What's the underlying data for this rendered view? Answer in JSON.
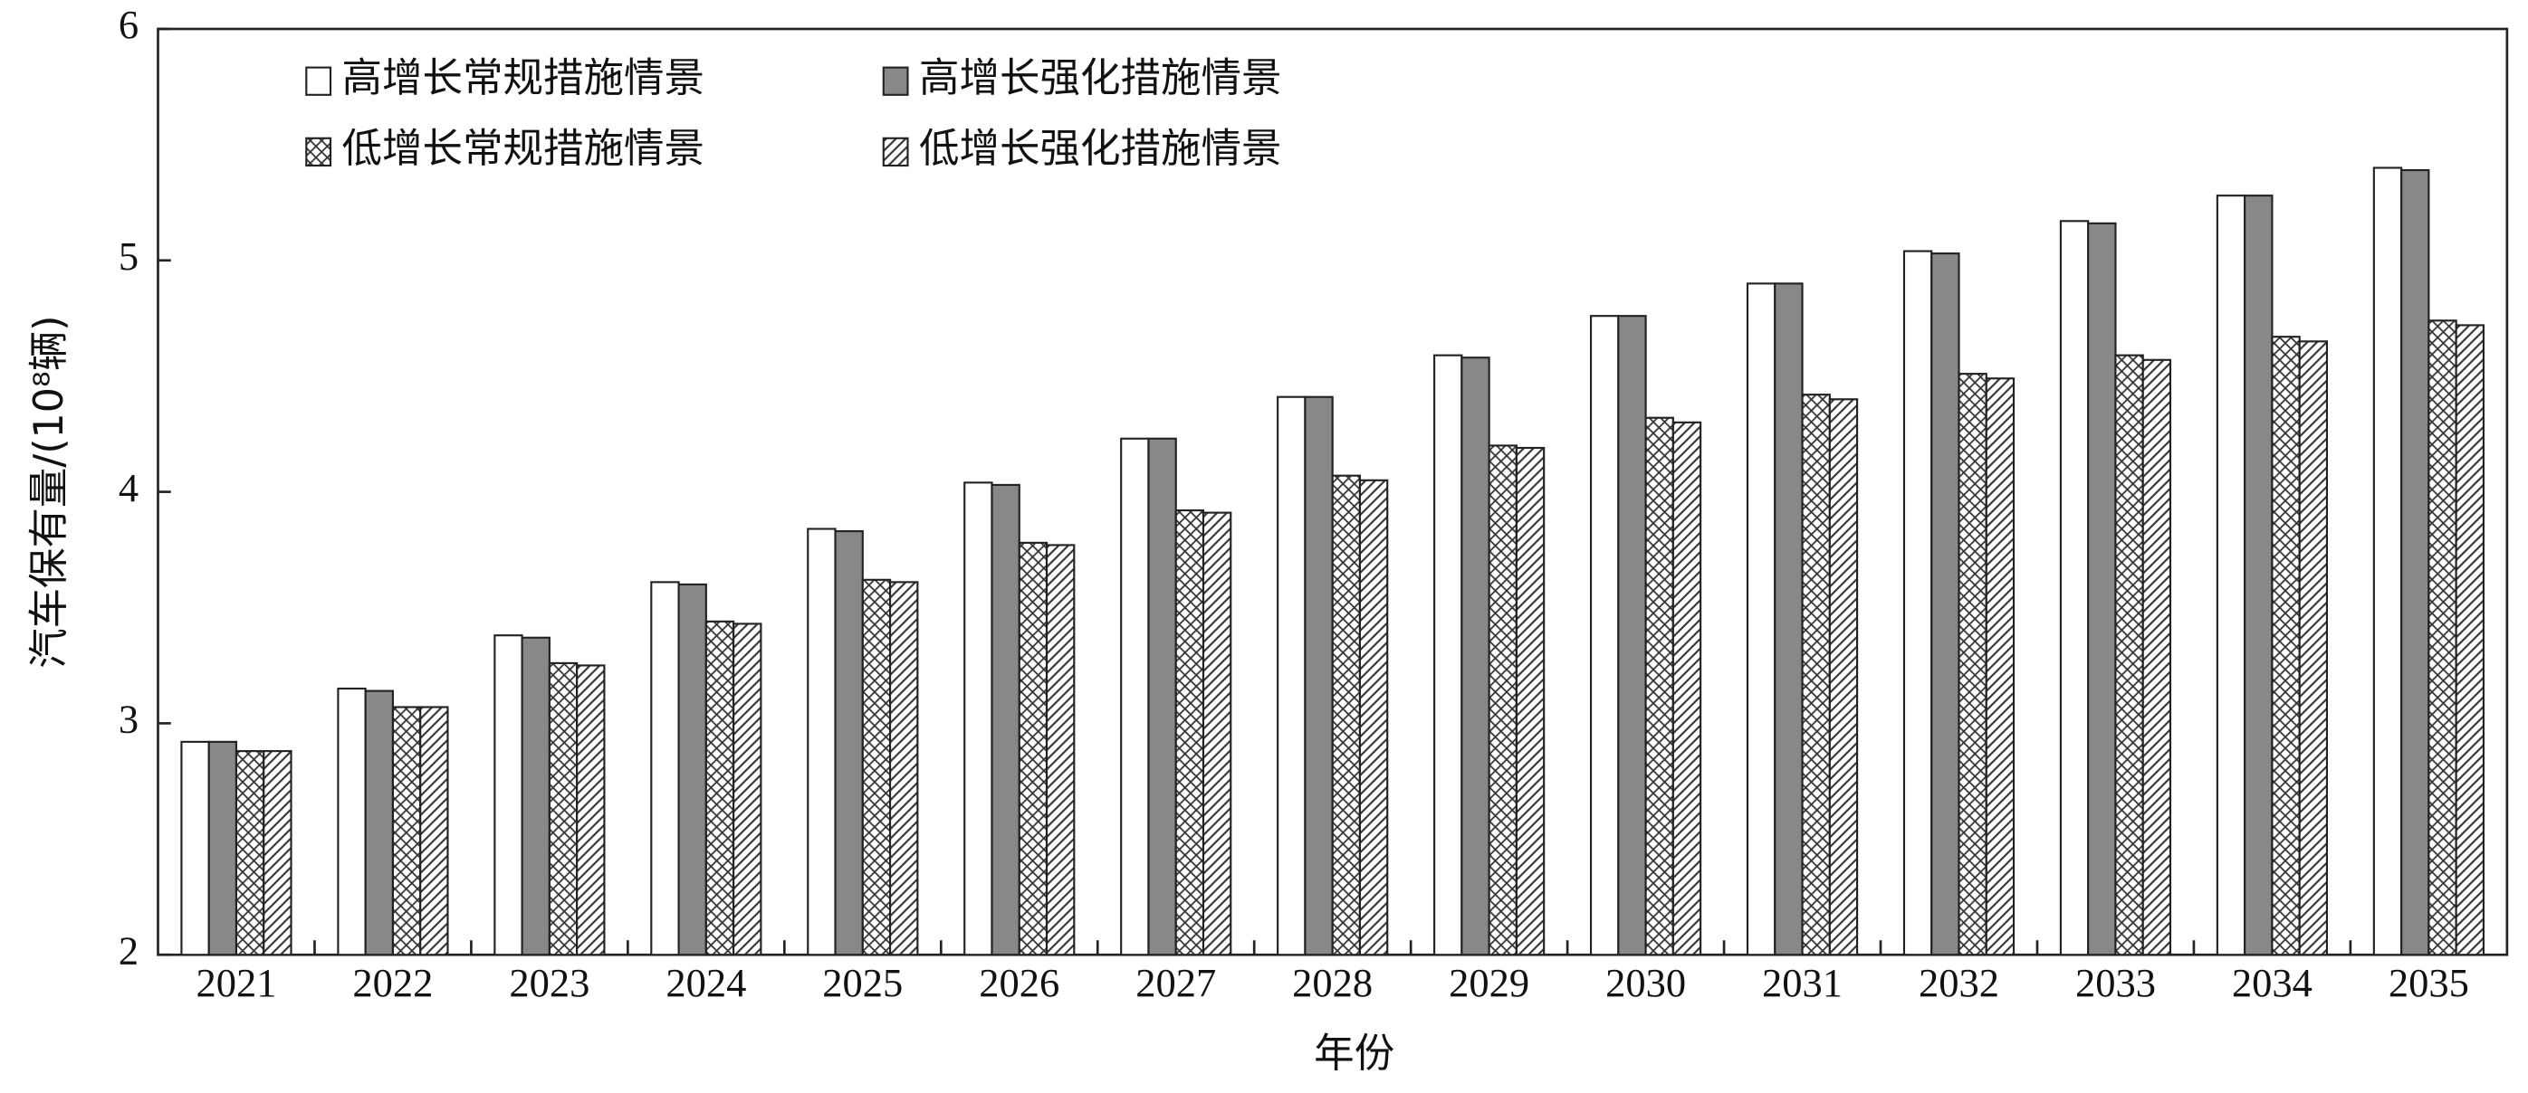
{
  "chart_data": {
    "type": "bar",
    "x_label": "年份",
    "y_label": "汽车保有量/(10⁸辆)",
    "categories": [
      "2021",
      "2022",
      "2023",
      "2024",
      "2025",
      "2026",
      "2027",
      "2028",
      "2029",
      "2030",
      "2031",
      "2032",
      "2033",
      "2034",
      "2035"
    ],
    "series": [
      {
        "name": "高增长常规措施情景",
        "color": "#ffffff",
        "values": [
          2.92,
          3.15,
          3.38,
          3.61,
          3.84,
          4.04,
          4.23,
          4.41,
          4.59,
          4.76,
          4.9,
          5.04,
          5.17,
          5.28,
          5.4
        ]
      },
      {
        "name": "高增长强化措施情景",
        "color": "#888888",
        "values": [
          2.92,
          3.14,
          3.37,
          3.6,
          3.83,
          4.03,
          4.23,
          4.41,
          4.58,
          4.76,
          4.9,
          5.03,
          5.16,
          5.28,
          5.39
        ]
      },
      {
        "name": "低增长常规措施情景",
        "color": "#ffffff",
        "hatch": "cross",
        "values": [
          2.88,
          3.07,
          3.26,
          3.44,
          3.62,
          3.78,
          3.92,
          4.07,
          4.2,
          4.32,
          4.42,
          4.51,
          4.59,
          4.67,
          4.74
        ]
      },
      {
        "name": "低增长强化措施情景",
        "color": "#ffffff",
        "hatch": "diagonal",
        "values": [
          2.88,
          3.07,
          3.25,
          3.43,
          3.61,
          3.77,
          3.91,
          4.05,
          4.19,
          4.3,
          4.4,
          4.49,
          4.57,
          4.65,
          4.72
        ]
      }
    ],
    "ylim": [
      2,
      6
    ],
    "yticks": [
      2,
      3,
      4,
      5,
      6
    ],
    "legend": "upper left",
    "legend_columns": 2
  }
}
